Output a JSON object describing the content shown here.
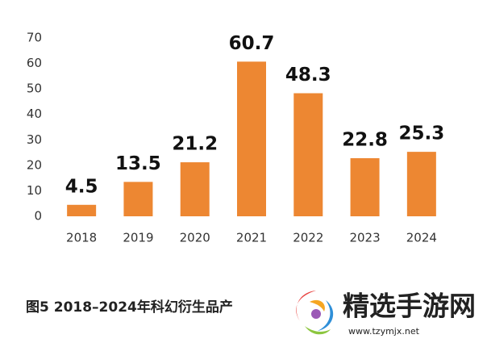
{
  "chart_data": {
    "type": "bar",
    "title": "图5  2018–2024年科幻衍生品产",
    "categories": [
      "2018",
      "2019",
      "2020",
      "2021",
      "2022",
      "2023",
      "2024"
    ],
    "values": [
      4.5,
      13.5,
      21.2,
      60.7,
      48.3,
      22.8,
      25.3
    ],
    "color": "#ed8732",
    "ylim": [
      0,
      70
    ],
    "yticks": [
      0,
      10,
      20,
      30,
      40,
      50,
      60,
      70
    ],
    "grid": false
  },
  "watermark": {
    "name": "精选手游网",
    "url": "www.tzymjx.net"
  }
}
